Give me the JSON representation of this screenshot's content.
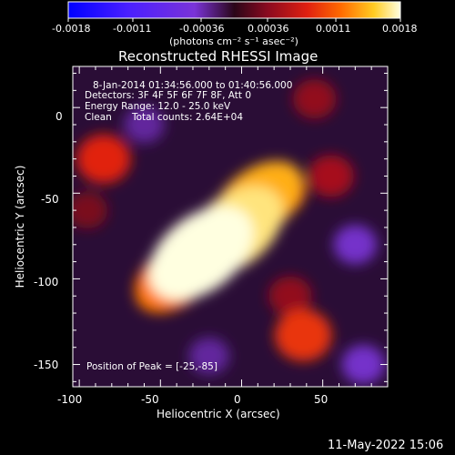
{
  "colorbar": {
    "ticks": [
      "-0.0018",
      "-0.0011",
      "-0.00036",
      "0.00036",
      "0.0011",
      "0.0018"
    ],
    "units_label": "(photons cm⁻² s⁻¹ asec⁻²)",
    "range": [
      -0.0018,
      0.0018
    ]
  },
  "plot": {
    "title": "Reconstructed RHESSI Image",
    "xlabel": "Heliocentric X (arcsec)",
    "ylabel": "Heliocentric Y (arcsec)",
    "info": {
      "time_range": "8-Jan-2014 01:34:56.000 to 01:40:56.000",
      "detectors": "Detectors: 3F 4F 5F 6F 7F 8F, Att 0",
      "energy_range": "Energy Range: 12.0 - 25.0 keV",
      "clean": "Clean",
      "total_counts": "Total counts: 2.64E+04",
      "peak_position": "Position of Peak = [-25,-85]"
    },
    "xticks": [
      "-100",
      "-50",
      "0",
      "50"
    ],
    "yticks": [
      "0",
      "-50",
      "-100",
      "-150"
    ]
  },
  "footer": {
    "date": "11-May-2022 15:06"
  },
  "chart_data": {
    "type": "heatmap",
    "title": "Reconstructed RHESSI Image",
    "xlabel": "Heliocentric X (arcsec)",
    "ylabel": "Heliocentric Y (arcsec)",
    "xlim": [
      -104,
      90
    ],
    "ylim": [
      -163,
      24
    ],
    "xticks": [
      -100,
      -50,
      0,
      50
    ],
    "yticks": [
      0,
      -50,
      -100,
      -150
    ],
    "colorbar_range": [
      -0.0018,
      0.0018
    ],
    "colorbar_ticks": [
      -0.0018,
      -0.0011,
      -0.00036,
      0.00036,
      0.0011,
      0.0018
    ],
    "peak": [
      -25,
      -85
    ],
    "features": [
      {
        "x": -25,
        "y": -85,
        "value": 0.0018
      },
      {
        "x": -5,
        "y": -72,
        "value": 0.00165
      },
      {
        "x": 10,
        "y": -55,
        "value": 0.0014
      },
      {
        "x": -40,
        "y": -98,
        "value": 0.0012
      },
      {
        "x": 22,
        "y": -48,
        "value": 0.0009
      },
      {
        "x": -50,
        "y": -105,
        "value": 0.0007
      },
      {
        "x": -85,
        "y": -30,
        "value": 0.0008
      },
      {
        "x": 38,
        "y": -133,
        "value": 0.0009
      },
      {
        "x": 55,
        "y": -40,
        "value": 0.0005
      },
      {
        "x": 45,
        "y": 5,
        "value": 0.0004
      },
      {
        "x": 30,
        "y": -110,
        "value": 0.0004
      },
      {
        "x": -95,
        "y": -60,
        "value": 0.0003
      },
      {
        "x": -20,
        "y": -145,
        "value": -0.0003
      },
      {
        "x": 70,
        "y": -80,
        "value": -0.0004
      },
      {
        "x": -60,
        "y": -10,
        "value": -0.0003
      },
      {
        "x": 75,
        "y": -150,
        "value": -0.0004
      }
    ]
  }
}
